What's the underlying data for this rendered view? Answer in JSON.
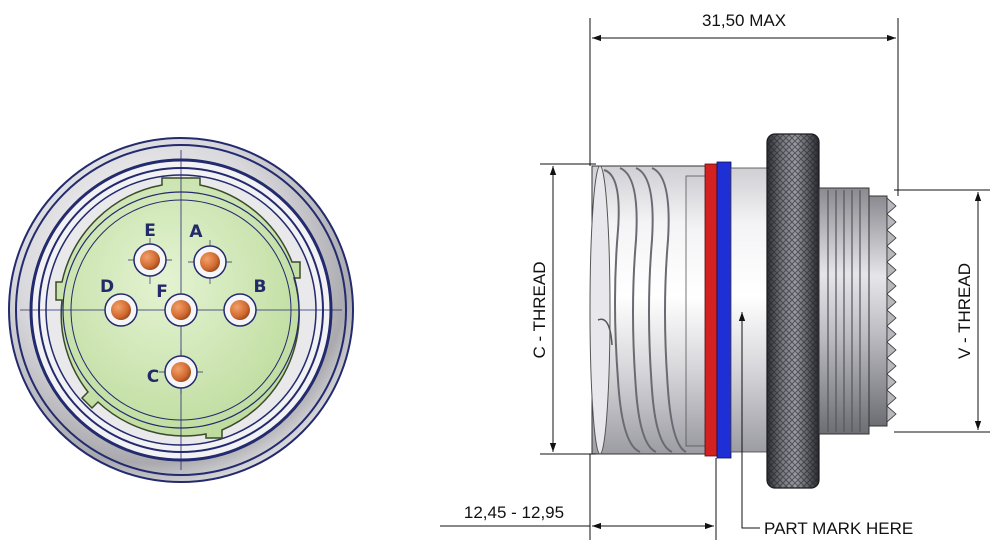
{
  "dimensions": {
    "overall_length": "31,50 MAX",
    "front_offset": "12,45 - 12,95",
    "c_thread": "C - THREAD",
    "v_thread": "V - THREAD"
  },
  "callouts": {
    "part_mark": "PART MARK HERE"
  },
  "pins": [
    {
      "label": "A"
    },
    {
      "label": "B"
    },
    {
      "label": "C"
    },
    {
      "label": "D"
    },
    {
      "label": "E"
    },
    {
      "label": "F"
    }
  ],
  "colors": {
    "insert_green": "#cfe6b4",
    "contact_copper": "#d9743a",
    "band_red": "#d32020",
    "band_blue": "#1f2fd6",
    "outline_navy": "#232a6e"
  }
}
